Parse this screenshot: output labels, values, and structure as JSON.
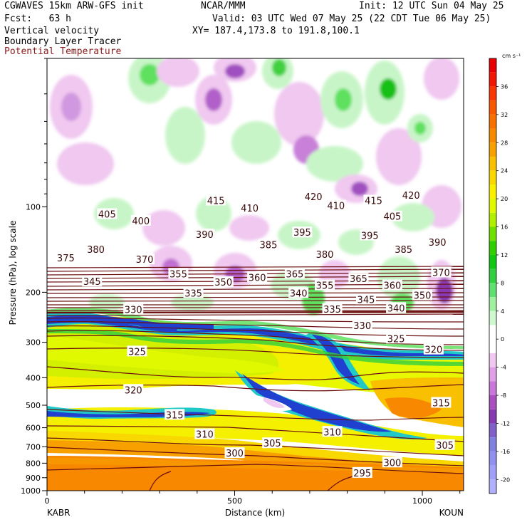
{
  "header": {
    "model": "CGWAVES 15km ARW-GFS init",
    "org": "NCAR/MMM",
    "init": "Init: 12 UTC Sun 04 May 25",
    "fcst": "Fcst:   63 h",
    "valid": "Valid: 03 UTC Wed 07 May 25 (22 CDT Tue 06 May 25)",
    "var1": "Vertical velocity",
    "var2": "Boundary Layer Tracer",
    "var3": "Potential Temperature",
    "xy": "XY= 187.4,173.8 to 191.8,100.1"
  },
  "colors": {
    "theta": "#6b0f0f",
    "bl_tracer": "#2040d0",
    "up_light": "#c8f5c8",
    "up_mid": "#5fe05f",
    "up_strong": "#18c018",
    "down_light": "#f0c0f0",
    "down_mid": "#c880d8",
    "down_strong": "#9030a8"
  },
  "chart_data": {
    "type": "heatmap",
    "title": "",
    "xlabel": "Distance (km)",
    "ylabel": "Pressure (hPa), log scale",
    "xlim": [
      0,
      1110
    ],
    "ylim": [
      1000,
      30
    ],
    "y_scale": "log",
    "x_ticks": [
      0,
      500,
      1000
    ],
    "y_ticks": [
      100,
      200,
      300,
      400,
      500,
      600,
      700,
      800,
      900,
      1000
    ],
    "x_endpoints": [
      "KABR",
      "KOUN"
    ],
    "colorbar": {
      "units": "cm s⁻¹",
      "ticks": [
        36,
        32,
        28,
        24,
        20,
        16,
        12,
        8,
        4,
        0,
        -4,
        -8,
        -12,
        -16,
        -20
      ],
      "bins": [
        {
          "from": 38,
          "to": 40,
          "color": "#e80000"
        },
        {
          "from": 36,
          "to": 38,
          "color": "#f01800"
        },
        {
          "from": 34,
          "to": 36,
          "color": "#f83800"
        },
        {
          "from": 32,
          "to": 34,
          "color": "#f85800"
        },
        {
          "from": 30,
          "to": 32,
          "color": "#f87000"
        },
        {
          "from": 28,
          "to": 30,
          "color": "#f88800"
        },
        {
          "from": 26,
          "to": 28,
          "color": "#f8a000"
        },
        {
          "from": 24,
          "to": 26,
          "color": "#f8c000"
        },
        {
          "from": 22,
          "to": 24,
          "color": "#f8d800"
        },
        {
          "from": 20,
          "to": 22,
          "color": "#f8f000"
        },
        {
          "from": 18,
          "to": 20,
          "color": "#e0f800"
        },
        {
          "from": 16,
          "to": 18,
          "color": "#b0f000"
        },
        {
          "from": 14,
          "to": 16,
          "color": "#70e000"
        },
        {
          "from": 12,
          "to": 14,
          "color": "#30d000"
        },
        {
          "from": 10,
          "to": 12,
          "color": "#10c810"
        },
        {
          "from": 8,
          "to": 10,
          "color": "#30d040"
        },
        {
          "from": 6,
          "to": 8,
          "color": "#60e070"
        },
        {
          "from": 4,
          "to": 6,
          "color": "#a0f0a0"
        },
        {
          "from": 2,
          "to": 4,
          "color": "#d0f8d0"
        },
        {
          "from": -2,
          "to": 2,
          "color": "#ffffff"
        },
        {
          "from": -4,
          "to": -2,
          "color": "#f0c8f0"
        },
        {
          "from": -6,
          "to": -4,
          "color": "#e0a0e8"
        },
        {
          "from": -8,
          "to": -6,
          "color": "#c878d8"
        },
        {
          "from": -10,
          "to": -8,
          "color": "#a850c0"
        },
        {
          "from": -12,
          "to": -10,
          "color": "#8838b0"
        },
        {
          "from": -14,
          "to": -12,
          "color": "#8060c8"
        },
        {
          "from": -16,
          "to": -14,
          "color": "#8080e0"
        },
        {
          "from": -18,
          "to": -16,
          "color": "#9090f0"
        },
        {
          "from": -20,
          "to": -18,
          "color": "#a0a0f8"
        },
        {
          "from": -22,
          "to": -20,
          "color": "#b0b0ff"
        }
      ]
    },
    "theta_labels": [
      {
        "value": "415",
        "x": 450,
        "p": 95
      },
      {
        "value": "420",
        "x": 710,
        "p": 92
      },
      {
        "value": "415",
        "x": 870,
        "p": 95
      },
      {
        "value": "420",
        "x": 970,
        "p": 91
      },
      {
        "value": "405",
        "x": 160,
        "p": 106
      },
      {
        "value": "410",
        "x": 540,
        "p": 101
      },
      {
        "value": "410",
        "x": 770,
        "p": 99
      },
      {
        "value": "405",
        "x": 920,
        "p": 108
      },
      {
        "value": "400",
        "x": 250,
        "p": 112
      },
      {
        "value": "390",
        "x": 420,
        "p": 125
      },
      {
        "value": "395",
        "x": 680,
        "p": 123
      },
      {
        "value": "395",
        "x": 860,
        "p": 126
      },
      {
        "value": "390",
        "x": 1040,
        "p": 133
      },
      {
        "value": "385",
        "x": 590,
        "p": 136
      },
      {
        "value": "385",
        "x": 950,
        "p": 141
      },
      {
        "value": "380",
        "x": 130,
        "p": 141
      },
      {
        "value": "380",
        "x": 740,
        "p": 147
      },
      {
        "value": "375",
        "x": 50,
        "p": 151
      },
      {
        "value": "370",
        "x": 260,
        "p": 153
      },
      {
        "value": "370",
        "x": 1050,
        "p": 170
      },
      {
        "value": "355",
        "x": 350,
        "p": 172
      },
      {
        "value": "360",
        "x": 560,
        "p": 177
      },
      {
        "value": "365",
        "x": 660,
        "p": 172
      },
      {
        "value": "365",
        "x": 830,
        "p": 179
      },
      {
        "value": "345",
        "x": 120,
        "p": 183
      },
      {
        "value": "350",
        "x": 470,
        "p": 184
      },
      {
        "value": "355",
        "x": 740,
        "p": 189
      },
      {
        "value": "360",
        "x": 920,
        "p": 189
      },
      {
        "value": "335",
        "x": 390,
        "p": 201
      },
      {
        "value": "340",
        "x": 670,
        "p": 201
      },
      {
        "value": "350",
        "x": 1000,
        "p": 205
      },
      {
        "value": "345",
        "x": 850,
        "p": 212
      },
      {
        "value": "340",
        "x": 930,
        "p": 227
      },
      {
        "value": "335",
        "x": 760,
        "p": 229
      },
      {
        "value": "330",
        "x": 230,
        "p": 230
      },
      {
        "value": "330",
        "x": 840,
        "p": 262
      },
      {
        "value": "325",
        "x": 930,
        "p": 291
      },
      {
        "value": "320",
        "x": 1030,
        "p": 318
      },
      {
        "value": "325",
        "x": 240,
        "p": 323
      },
      {
        "value": "320",
        "x": 230,
        "p": 441
      },
      {
        "value": "315",
        "x": 1050,
        "p": 490
      },
      {
        "value": "315",
        "x": 340,
        "p": 540
      },
      {
        "value": "310",
        "x": 760,
        "p": 620
      },
      {
        "value": "310",
        "x": 420,
        "p": 632
      },
      {
        "value": "305",
        "x": 600,
        "p": 680
      },
      {
        "value": "305",
        "x": 1060,
        "p": 690
      },
      {
        "value": "300",
        "x": 500,
        "p": 737
      },
      {
        "value": "300",
        "x": 920,
        "p": 795
      },
      {
        "value": "295",
        "x": 840,
        "p": 865
      }
    ]
  }
}
